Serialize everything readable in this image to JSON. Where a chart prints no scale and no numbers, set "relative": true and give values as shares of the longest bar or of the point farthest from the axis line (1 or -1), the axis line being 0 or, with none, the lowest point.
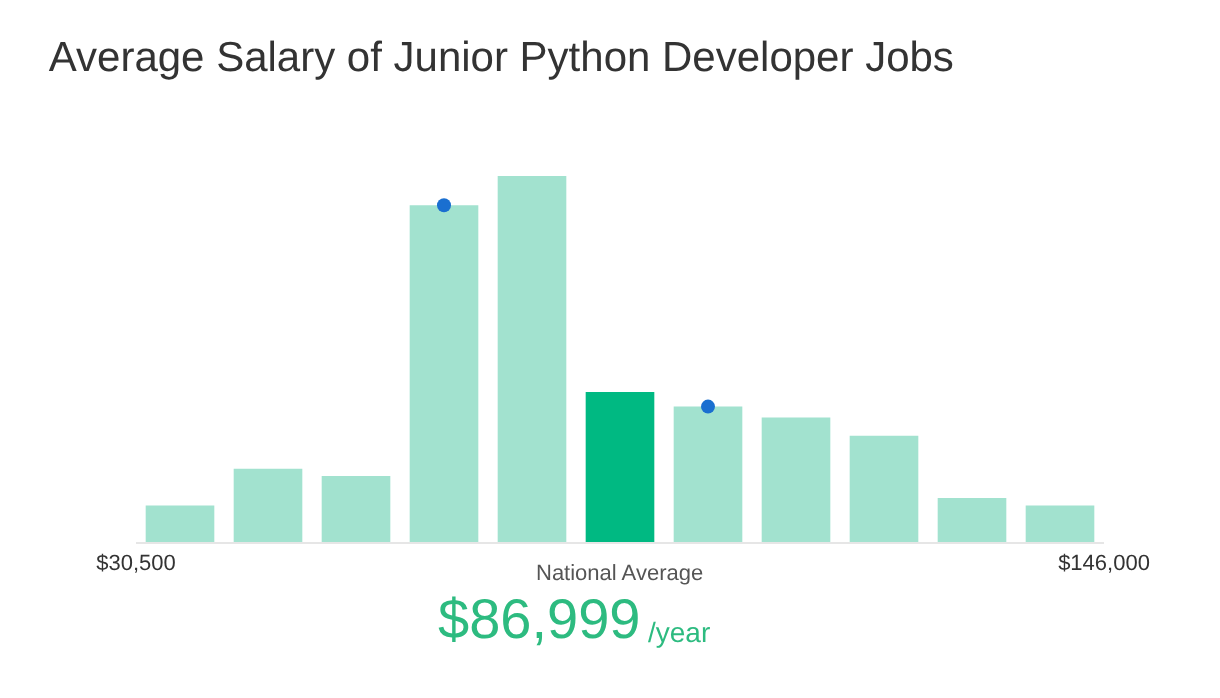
{
  "chart_data": {
    "type": "bar",
    "title": "Average Salary of Junior Python Developer Jobs",
    "relative": true,
    "x": [
      35750,
      46250,
      56750,
      67250,
      77750,
      88250,
      98750,
      109250,
      119750,
      130250,
      140750
    ],
    "xlim": [
      30500,
      146000
    ],
    "xticks": [
      {
        "value": 30500,
        "label": "$30,500"
      },
      {
        "value": 146000,
        "label": "$146,000"
      }
    ],
    "series": [
      {
        "colors": [
          "#a2e2cf",
          "#a2e2cf",
          "#a2e2cf",
          "#a2e2cf",
          "#a2e2cf",
          "#00b982",
          "#a2e2cf",
          "#a2e2cf",
          "#a2e2cf",
          "#a2e2cf",
          "#a2e2cf"
        ],
        "values": [
          0.1,
          0.2,
          0.18,
          0.92,
          1,
          0.41,
          0.37,
          0.34,
          0.29,
          0.12,
          0.1
        ]
      },
      {
        "type": "scatter",
        "color": "#1a6fd0",
        "x": [
          67250,
          98750
        ],
        "values": [
          0.92,
          0.37
        ]
      }
    ],
    "marker": "circle",
    "annotations": [
      "National Average",
      "$86,999",
      "/year"
    ]
  }
}
